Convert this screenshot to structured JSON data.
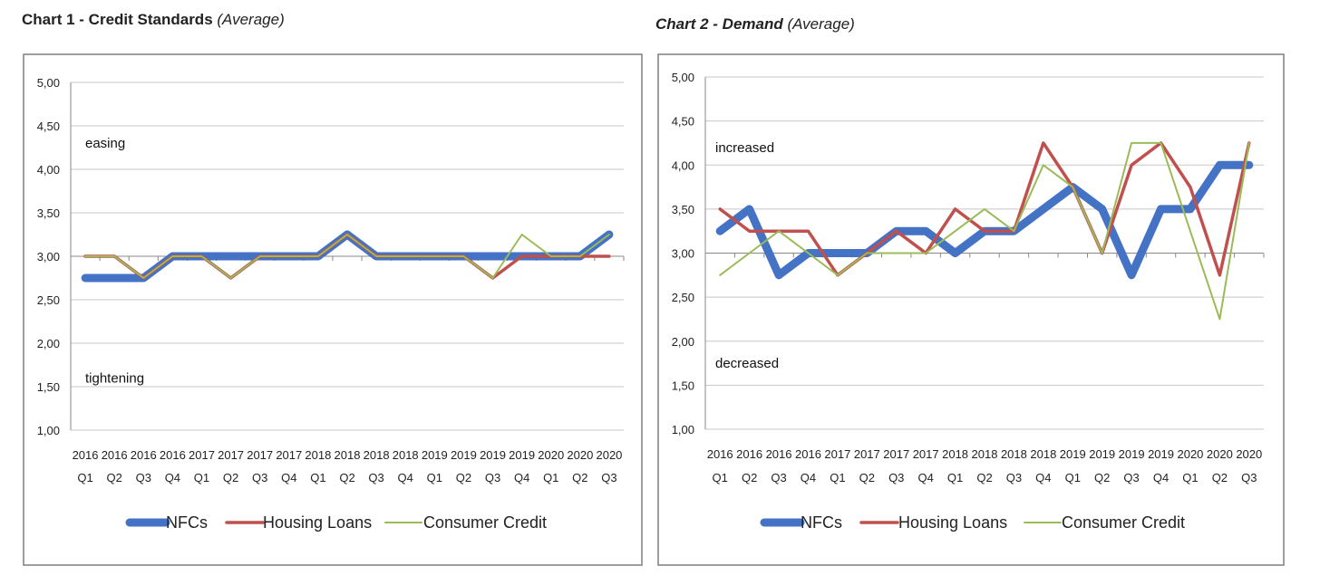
{
  "chart1_title": {
    "main": "Chart 1 - Credit Standards",
    "sub": "(Average)"
  },
  "chart2_title": {
    "main": "Chart 2 - Demand",
    "sub": "(Average)"
  },
  "chart_data": [
    {
      "type": "line",
      "title": "Chart 1 - Credit Standards (Average)",
      "xlabel": "",
      "ylabel": "",
      "ylim": [
        1.0,
        5.0
      ],
      "y_ticks": [
        "5,00",
        "4,50",
        "4,00",
        "3,50",
        "3,00",
        "2,50",
        "2,00",
        "1,50",
        "1,00"
      ],
      "grid": true,
      "legend_position": "bottom",
      "categories": [
        [
          "2016",
          "Q1"
        ],
        [
          "2016",
          "Q2"
        ],
        [
          "2016",
          "Q3"
        ],
        [
          "2016",
          "Q4"
        ],
        [
          "2017",
          "Q1"
        ],
        [
          "2017",
          "Q2"
        ],
        [
          "2017",
          "Q3"
        ],
        [
          "2017",
          "Q4"
        ],
        [
          "2018",
          "Q1"
        ],
        [
          "2018",
          "Q2"
        ],
        [
          "2018",
          "Q3"
        ],
        [
          "2018",
          "Q4"
        ],
        [
          "2019",
          "Q1"
        ],
        [
          "2019",
          "Q2"
        ],
        [
          "2019",
          "Q3"
        ],
        [
          "2019",
          "Q4"
        ],
        [
          "2020",
          "Q1"
        ],
        [
          "2020",
          "Q2"
        ],
        [
          "2020",
          "Q3"
        ]
      ],
      "annotations": [
        {
          "text": "easing",
          "value": 4.3
        },
        {
          "text": "tightening",
          "value": 1.6
        }
      ],
      "series": [
        {
          "name": "NFCs",
          "color": "#4472c4",
          "style": "thick",
          "values": [
            2.75,
            2.75,
            2.75,
            3.0,
            3.0,
            3.0,
            3.0,
            3.0,
            3.0,
            3.25,
            3.0,
            3.0,
            3.0,
            3.0,
            3.0,
            3.0,
            3.0,
            3.0,
            3.25
          ]
        },
        {
          "name": "Housing Loans",
          "color": "#c0504d",
          "style": "medium",
          "values": [
            3.0,
            3.0,
            2.75,
            3.0,
            3.0,
            2.75,
            3.0,
            3.0,
            3.0,
            3.25,
            3.0,
            3.0,
            3.0,
            3.0,
            2.75,
            3.0,
            3.0,
            3.0,
            3.0
          ]
        },
        {
          "name": "Consumer Credit",
          "color": "#9bbb59",
          "style": "thin",
          "values": [
            3.0,
            3.0,
            2.75,
            3.0,
            3.0,
            2.75,
            3.0,
            3.0,
            3.0,
            3.25,
            3.0,
            3.0,
            3.0,
            3.0,
            2.75,
            3.25,
            3.0,
            3.0,
            3.25
          ]
        }
      ]
    },
    {
      "type": "line",
      "title": "Chart 2 - Demand (Average)",
      "xlabel": "",
      "ylabel": "",
      "ylim": [
        1.0,
        5.0
      ],
      "y_ticks": [
        "5,00",
        "4,50",
        "4,00",
        "3,50",
        "3,00",
        "2,50",
        "2,00",
        "1,50",
        "1,00"
      ],
      "grid": true,
      "legend_position": "bottom",
      "categories": [
        [
          "2016",
          "Q1"
        ],
        [
          "2016",
          "Q2"
        ],
        [
          "2016",
          "Q3"
        ],
        [
          "2016",
          "Q4"
        ],
        [
          "2017",
          "Q1"
        ],
        [
          "2017",
          "Q2"
        ],
        [
          "2017",
          "Q3"
        ],
        [
          "2017",
          "Q4"
        ],
        [
          "2018",
          "Q1"
        ],
        [
          "2018",
          "Q2"
        ],
        [
          "2018",
          "Q3"
        ],
        [
          "2018",
          "Q4"
        ],
        [
          "2019",
          "Q1"
        ],
        [
          "2019",
          "Q2"
        ],
        [
          "2019",
          "Q3"
        ],
        [
          "2019",
          "Q4"
        ],
        [
          "2020",
          "Q1"
        ],
        [
          "2020",
          "Q2"
        ],
        [
          "2020",
          "Q3"
        ]
      ],
      "annotations": [
        {
          "text": "increased",
          "value": 4.2
        },
        {
          "text": "decreased",
          "value": 1.75
        }
      ],
      "series": [
        {
          "name": "NFCs",
          "color": "#4472c4",
          "style": "thick",
          "values": [
            3.25,
            3.5,
            2.75,
            3.0,
            3.0,
            3.0,
            3.25,
            3.25,
            3.0,
            3.25,
            3.25,
            3.5,
            3.75,
            3.5,
            2.75,
            3.5,
            3.5,
            4.0,
            4.0
          ]
        },
        {
          "name": "Housing Loans",
          "color": "#c0504d",
          "style": "medium",
          "values": [
            3.5,
            3.25,
            3.25,
            3.25,
            2.75,
            3.0,
            3.25,
            3.0,
            3.5,
            3.25,
            3.25,
            4.25,
            3.75,
            3.0,
            4.0,
            4.25,
            3.75,
            2.75,
            4.25
          ]
        },
        {
          "name": "Consumer Credit",
          "color": "#9bbb59",
          "style": "thin",
          "values": [
            2.75,
            3.0,
            3.25,
            3.0,
            2.75,
            3.0,
            3.0,
            3.0,
            3.25,
            3.5,
            3.25,
            4.0,
            3.75,
            3.0,
            4.25,
            4.25,
            3.25,
            2.25,
            4.25
          ]
        }
      ]
    }
  ]
}
